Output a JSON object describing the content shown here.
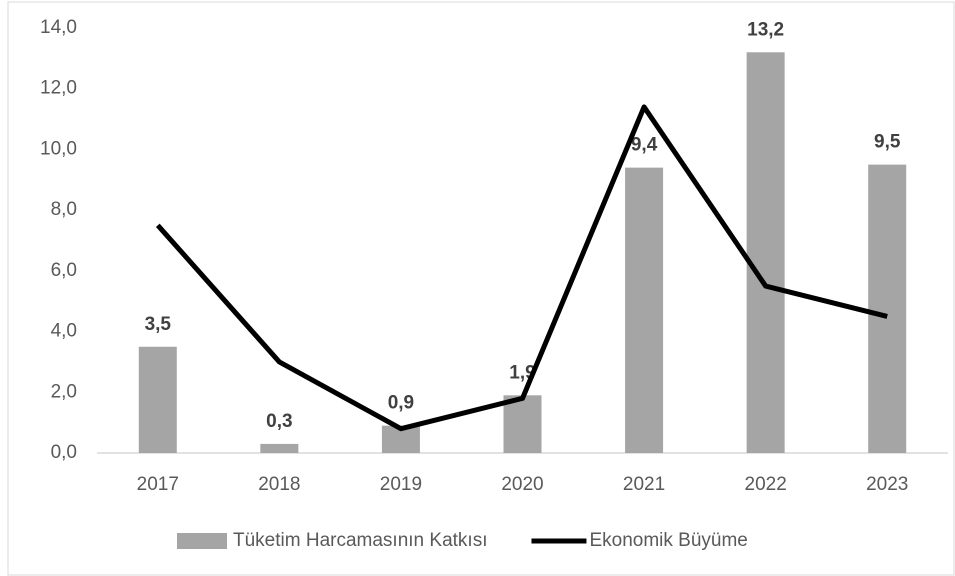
{
  "chart_data": {
    "type": "bar",
    "categories": [
      "2017",
      "2018",
      "2019",
      "2020",
      "2021",
      "2022",
      "2023"
    ],
    "series": [
      {
        "name": "Tüketim Harcamasının Katkısı",
        "type": "bar",
        "color": "#a5a5a5",
        "values": [
          3.5,
          0.3,
          0.9,
          1.9,
          9.4,
          13.2,
          9.5
        ],
        "value_labels": [
          "3,5",
          "0,3",
          "0,9",
          "1,9",
          "9,4",
          "13,2",
          "9,5"
        ]
      },
      {
        "name": "Ekonomik Büyüme",
        "type": "line",
        "color": "#000000",
        "values": [
          7.5,
          3.0,
          0.8,
          1.8,
          11.4,
          5.5,
          4.5
        ]
      }
    ],
    "ylim": [
      0,
      14
    ],
    "yticks": [
      {
        "value": 0,
        "label": "0,0"
      },
      {
        "value": 2,
        "label": "2,0"
      },
      {
        "value": 4,
        "label": "4,0"
      },
      {
        "value": 6,
        "label": "6,0"
      },
      {
        "value": 8,
        "label": "8,0"
      },
      {
        "value": 10,
        "label": "10,0"
      },
      {
        "value": 12,
        "label": "12,0"
      },
      {
        "value": 14,
        "label": "14,0"
      }
    ],
    "grid": false,
    "legend": "bottom"
  }
}
